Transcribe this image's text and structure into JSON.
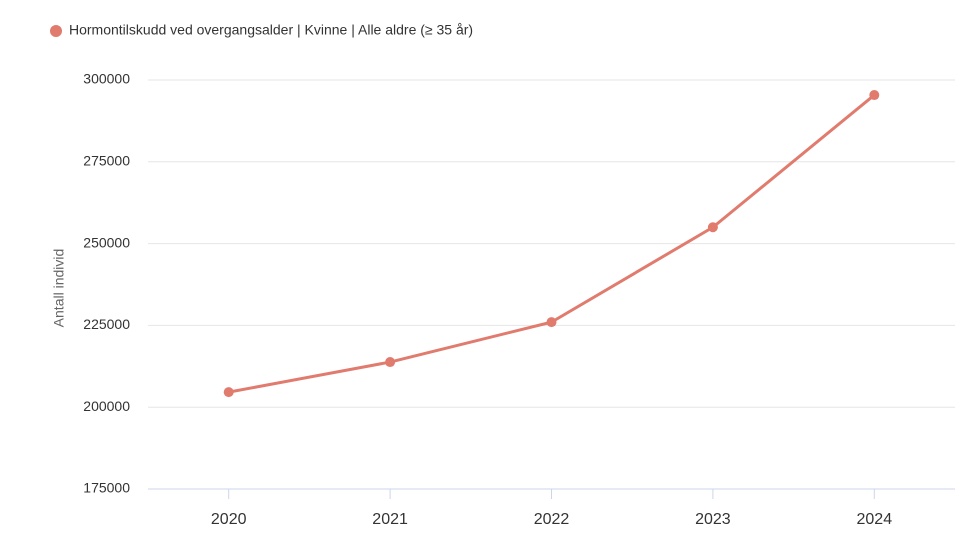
{
  "chart_data": {
    "type": "line",
    "legend_position": "top-left",
    "y_label": "Antall individ",
    "categories": [
      "2020",
      "2021",
      "2022",
      "2023",
      "2024"
    ],
    "series": [
      {
        "name": "Hormontilskudd ved overgangsalder | Kvinne | Alle aldre (≥ 35 år)",
        "color": "#e07b6e",
        "values": [
          204600,
          213800,
          226000,
          255000,
          295400
        ]
      }
    ],
    "ylim": [
      175000,
      300000
    ],
    "yticks": [
      175000,
      200000,
      225000,
      250000,
      275000,
      300000
    ],
    "grid": true
  }
}
